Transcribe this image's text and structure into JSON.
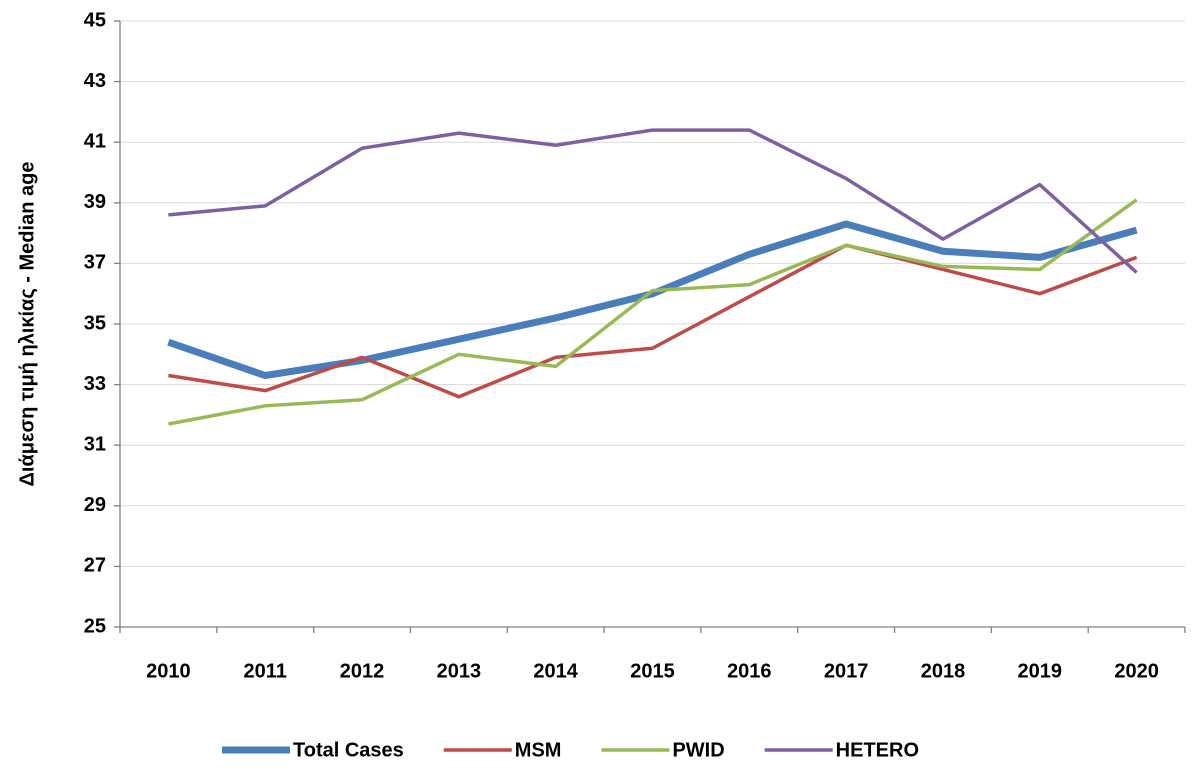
{
  "chart_data": {
    "type": "line",
    "y_label": "Διάμεση τιμή ηλικίας - Median age",
    "categories": [
      "2010",
      "2011",
      "2012",
      "2013",
      "2014",
      "2015",
      "2016",
      "2017",
      "2018",
      "2019",
      "2020"
    ],
    "series": [
      {
        "name": "Total Cases",
        "color": "#4a7ebb",
        "width": 7,
        "values": [
          34.4,
          33.3,
          33.8,
          34.5,
          35.2,
          36.0,
          37.3,
          38.3,
          37.4,
          37.2,
          38.1
        ]
      },
      {
        "name": "MSM",
        "color": "#be4b48",
        "width": 3.5,
        "values": [
          33.3,
          32.8,
          33.9,
          32.6,
          33.9,
          34.2,
          35.9,
          37.6,
          36.8,
          36.0,
          37.2
        ]
      },
      {
        "name": "PWID",
        "color": "#98b954",
        "width": 3.5,
        "values": [
          31.7,
          32.3,
          32.5,
          34.0,
          33.6,
          36.1,
          36.3,
          37.6,
          36.9,
          36.8,
          39.1
        ]
      },
      {
        "name": "HETERO",
        "color": "#7d60a0",
        "width": 3.5,
        "values": [
          38.6,
          38.9,
          40.8,
          41.3,
          40.9,
          41.4,
          41.4,
          39.8,
          37.8,
          39.6,
          36.7
        ]
      }
    ],
    "ylim": [
      25,
      45
    ],
    "yticks": [
      25,
      27,
      29,
      31,
      33,
      35,
      37,
      39,
      41,
      43,
      45
    ],
    "grid": true,
    "legend": "bottom"
  }
}
